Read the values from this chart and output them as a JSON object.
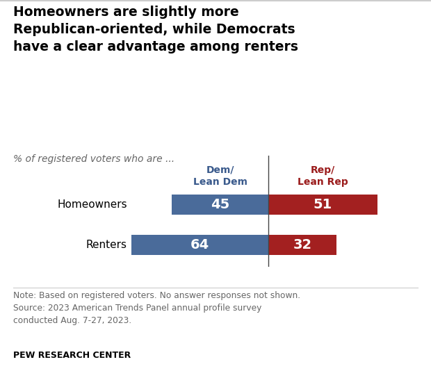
{
  "title": "Homeowners are slightly more\nRepublican-oriented, while Democrats\nhave a clear advantage among renters",
  "subtitle": "% of registered voters who are ...",
  "col_header_dem": "Dem/\nLean Dem",
  "col_header_rep": "Rep/\nLean Rep",
  "col_header_dem_color": "#3a5a8c",
  "col_header_rep_color": "#9b1c1c",
  "categories": [
    "Homeowners",
    "Renters"
  ],
  "dem_values": [
    45,
    64
  ],
  "rep_values": [
    51,
    32
  ],
  "dem_color": "#4a6b9a",
  "rep_color": "#a32020",
  "text_color_white": "#ffffff",
  "note_text": "Note: Based on registered voters. No answer responses not shown.\nSource: 2023 American Trends Panel annual profile survey\nconducted Aug. 7-27, 2023.",
  "source_label": "PEW RESEARCH CENTER",
  "background_color": "#ffffff",
  "max_dem": 80,
  "max_rep": 80
}
